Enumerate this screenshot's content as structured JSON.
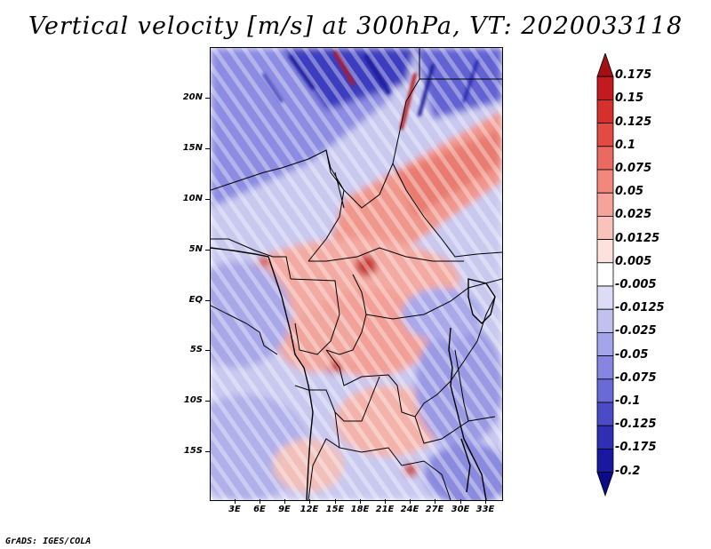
{
  "title": "Vertical velocity [m/s] at 300hPa, VT: 2020033118",
  "footer": "GrADS: IGES/COLA",
  "map": {
    "lat_labels": [
      "20N",
      "15N",
      "10N",
      "5N",
      "EQ",
      "5S",
      "10S",
      "15S"
    ],
    "lon_labels": [
      "3E",
      "6E",
      "9E",
      "12E",
      "15E",
      "18E",
      "21E",
      "24E",
      "27E",
      "30E",
      "33E"
    ],
    "region": "Central Africa",
    "variable": "vertical velocity",
    "units": "m/s",
    "level": "300hPa"
  },
  "colorbar": {
    "labels": [
      "0.175",
      "0.15",
      "0.125",
      "0.1",
      "0.075",
      "0.05",
      "0.025",
      "0.0125",
      "0.005",
      "-0.005",
      "-0.0125",
      "-0.025",
      "-0.05",
      "-0.075",
      "-0.1",
      "-0.125",
      "-0.175",
      "-0.2"
    ],
    "colors": [
      "#a40f14",
      "#c21a1f",
      "#d6302d",
      "#e24a42",
      "#eb6a5f",
      "#f2877d",
      "#f6a49b",
      "#f9c3bc",
      "#fce1dd",
      "#ffffff",
      "#dcdcf6",
      "#c1c1ef",
      "#a4a4ea",
      "#8686e0",
      "#6a6ad6",
      "#4b4bc8",
      "#2f2fb4",
      "#1818a0",
      "#0b0b86"
    ]
  }
}
